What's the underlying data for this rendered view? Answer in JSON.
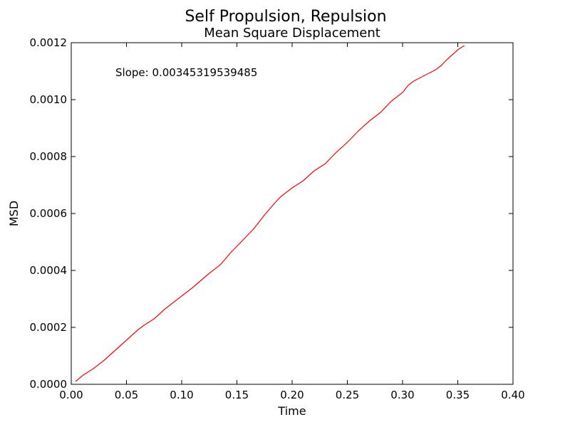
{
  "chart_data": {
    "type": "line",
    "suptitle": "Self Propulsion, Repulsion",
    "title": "Mean Square Displacement",
    "xlabel": "Time",
    "ylabel": "MSD",
    "xlim": [
      0.0,
      0.4
    ],
    "ylim": [
      0.0,
      0.0012
    ],
    "xticks": [
      "0.00",
      "0.05",
      "0.10",
      "0.15",
      "0.20",
      "0.25",
      "0.30",
      "0.35",
      "0.40"
    ],
    "yticks": [
      "0.0000",
      "0.0002",
      "0.0004",
      "0.0006",
      "0.0008",
      "0.0010",
      "0.0012"
    ],
    "grid": false,
    "annotation": "Slope: 0.00345319539485",
    "series": [
      {
        "color": "#ff0000",
        "x": [
          0.004,
          0.01,
          0.02,
          0.03,
          0.04,
          0.05,
          0.06,
          0.065,
          0.075,
          0.085,
          0.1,
          0.11,
          0.125,
          0.135,
          0.145,
          0.155,
          0.165,
          0.175,
          0.185,
          0.19,
          0.2,
          0.21,
          0.22,
          0.23,
          0.24,
          0.25,
          0.26,
          0.27,
          0.28,
          0.29,
          0.3,
          0.305,
          0.31,
          0.32,
          0.33,
          0.335,
          0.34,
          0.35,
          0.356
        ],
        "y": [
          1e-05,
          3e-05,
          5.5e-05,
          8.5e-05,
          0.00012,
          0.000155,
          0.00019,
          0.000205,
          0.00023,
          0.000265,
          0.00031,
          0.00034,
          0.00039,
          0.00042,
          0.000465,
          0.000505,
          0.000545,
          0.000595,
          0.00064,
          0.00066,
          0.00069,
          0.000715,
          0.00075,
          0.000775,
          0.000815,
          0.00085,
          0.00089,
          0.000925,
          0.000955,
          0.000995,
          0.001025,
          0.00105,
          0.001065,
          0.001085,
          0.001105,
          0.00112,
          0.00114,
          0.001175,
          0.00119
        ]
      }
    ]
  }
}
